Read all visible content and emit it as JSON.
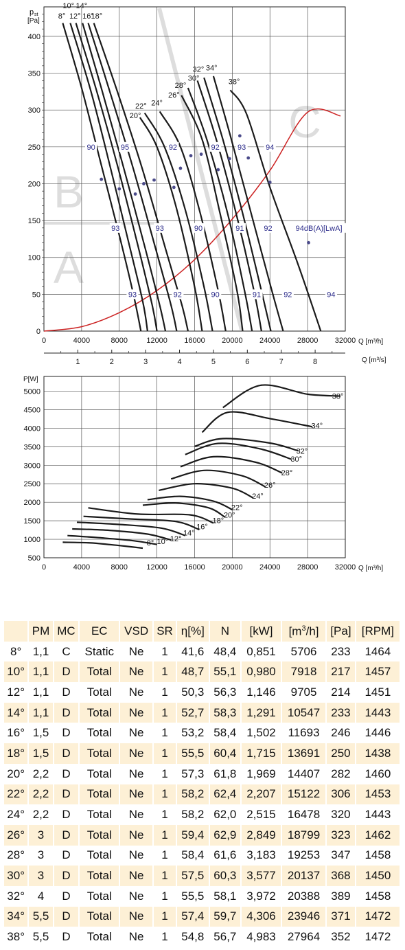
{
  "chart_data": [
    {
      "type": "line",
      "xlabel": "Q [m³/h]",
      "ylabel_top": "p",
      "ylabel_sub": "st",
      "ylabel_unit": "[Pa]",
      "xlim": [
        0,
        32000
      ],
      "ylim": [
        0,
        440
      ],
      "xticks": [
        "0",
        "4000",
        "8000",
        "12000",
        "16000",
        "20000",
        "24000",
        "28000",
        "32000"
      ],
      "xticks_values": [
        0,
        4000,
        8000,
        12000,
        16000,
        20000,
        24000,
        28000,
        32000
      ],
      "yticks": [
        "0",
        "50",
        "100",
        "150",
        "200",
        "250",
        "300",
        "350",
        "400"
      ],
      "yticks_values": [
        0,
        50,
        100,
        150,
        200,
        250,
        300,
        350,
        400
      ],
      "secondary_axis": {
        "label": "Q [m³/s]",
        "ticks": [
          "1",
          "2",
          "3",
          "4",
          "5",
          "6",
          "7",
          "8"
        ],
        "values": [
          1,
          2,
          3,
          4,
          5,
          6,
          7,
          8
        ],
        "m3h_per_unit": 3600
      },
      "zone_letters": [
        "A",
        "B",
        "C"
      ],
      "system_curve": {
        "color": "#cc2222",
        "x": [
          0,
          4000,
          8000,
          12000,
          16000,
          20000,
          24000,
          28000,
          31500
        ],
        "y": [
          0,
          6,
          25,
          55,
          97,
          152,
          218,
          297,
          292
        ]
      },
      "series": [
        {
          "name": "8°",
          "label_at": [
            1900,
            424
          ],
          "x": [
            2000,
            4000,
            6000,
            8000,
            9500,
            10300
          ],
          "y": [
            418,
            330,
            230,
            130,
            50,
            0
          ]
        },
        {
          "name": "10°",
          "label_at": [
            2600,
            438
          ],
          "x": [
            2800,
            5000,
            7000,
            9000,
            10500,
            11000
          ],
          "y": [
            418,
            325,
            225,
            120,
            40,
            0
          ]
        },
        {
          "name": "12°",
          "label_at": [
            3300,
            424
          ],
          "x": [
            3400,
            5500,
            7800,
            10000,
            11500,
            12000
          ],
          "y": [
            418,
            330,
            225,
            115,
            35,
            0
          ]
        },
        {
          "name": "14°",
          "label_at": [
            4000,
            438
          ],
          "x": [
            4100,
            6200,
            8500,
            10800,
            12300,
            12900
          ],
          "y": [
            418,
            325,
            220,
            110,
            35,
            0
          ]
        },
        {
          "name": "16°",
          "label_at": [
            4700,
            424
          ],
          "x": [
            4700,
            7000,
            9500,
            11900,
            13500,
            14100
          ],
          "y": [
            418,
            325,
            220,
            110,
            35,
            0
          ]
        },
        {
          "name": "18°",
          "label_at": [
            5600,
            424
          ],
          "x": [
            5300,
            7800,
            10500,
            13000,
            14700,
            15300
          ],
          "y": [
            418,
            325,
            218,
            108,
            33,
            0
          ]
        },
        {
          "name": "20°",
          "label_at": [
            9700,
            289
          ],
          "x": [
            10200,
            12000,
            14000,
            16000,
            16800
          ],
          "y": [
            290,
            250,
            170,
            60,
            0
          ]
        },
        {
          "name": "22°",
          "label_at": [
            10300,
            302
          ],
          "x": [
            10700,
            12800,
            15000,
            17000,
            17900
          ],
          "y": [
            296,
            250,
            165,
            60,
            0
          ]
        },
        {
          "name": "24°",
          "label_at": [
            12000,
            306
          ],
          "x": [
            12300,
            14500,
            16600,
            18500,
            19300
          ],
          "y": [
            298,
            250,
            160,
            55,
            0
          ]
        },
        {
          "name": "26°",
          "label_at": [
            13800,
            317
          ],
          "x": [
            14600,
            16800,
            18700,
            20500,
            21100
          ],
          "y": [
            320,
            260,
            160,
            55,
            0
          ]
        },
        {
          "name": "28°",
          "label_at": [
            14500,
            330
          ],
          "x": [
            15300,
            17300,
            19500,
            21300,
            22100
          ],
          "y": [
            330,
            260,
            160,
            55,
            0
          ]
        },
        {
          "name": "30°",
          "label_at": [
            15900,
            340
          ],
          "x": [
            16300,
            18300,
            20500,
            22300,
            23100
          ],
          "y": [
            340,
            260,
            155,
            55,
            0
          ]
        },
        {
          "name": "32°",
          "label_at": [
            16400,
            352
          ],
          "x": [
            17000,
            19000,
            21000,
            23000,
            24100
          ],
          "y": [
            344,
            260,
            165,
            60,
            0
          ]
        },
        {
          "name": "34°",
          "label_at": [
            17800,
            354
          ],
          "x": [
            18000,
            19800,
            22000,
            24200,
            25400
          ],
          "y": [
            346,
            265,
            160,
            55,
            0
          ]
        },
        {
          "name": "38°",
          "label_at": [
            20200,
            335
          ],
          "x": [
            19800,
            21500,
            24000,
            27000,
            29400
          ],
          "y": [
            327,
            295,
            195,
            90,
            0
          ]
        }
      ],
      "noise_labels": [
        {
          "text": "90",
          "at": [
            5000,
            250
          ]
        },
        {
          "text": "95",
          "at": [
            8600,
            250
          ]
        },
        {
          "text": "92",
          "at": [
            13700,
            250
          ]
        },
        {
          "text": "92",
          "at": [
            18200,
            250
          ]
        },
        {
          "text": "93",
          "at": [
            21000,
            250
          ]
        },
        {
          "text": "94",
          "at": [
            24000,
            250
          ]
        },
        {
          "text": "93",
          "at": [
            7600,
            140
          ]
        },
        {
          "text": "93",
          "at": [
            12300,
            140
          ]
        },
        {
          "text": "90",
          "at": [
            16400,
            140
          ]
        },
        {
          "text": "91",
          "at": [
            20800,
            140
          ]
        },
        {
          "text": "92",
          "at": [
            23800,
            140
          ]
        },
        {
          "text": "94dB(A)[LwA]",
          "at": [
            29200,
            140
          ]
        },
        {
          "text": "93",
          "at": [
            9400,
            50
          ]
        },
        {
          "text": "92",
          "at": [
            14200,
            50
          ]
        },
        {
          "text": "90",
          "at": [
            18200,
            50
          ]
        },
        {
          "text": "91",
          "at": [
            22600,
            50
          ]
        },
        {
          "text": "92",
          "at": [
            25900,
            50
          ]
        },
        {
          "text": "94",
          "at": [
            30500,
            50
          ]
        }
      ],
      "marker_points": [
        [
          6100,
          206
        ],
        [
          8000,
          193
        ],
        [
          9700,
          186
        ],
        [
          10600,
          200
        ],
        [
          11700,
          205
        ],
        [
          13800,
          195
        ],
        [
          14500,
          221
        ],
        [
          15600,
          238
        ],
        [
          16700,
          240
        ],
        [
          18500,
          219
        ],
        [
          19700,
          234
        ],
        [
          20800,
          265
        ],
        [
          21700,
          235
        ],
        [
          24000,
          202
        ],
        [
          28100,
          120
        ]
      ]
    },
    {
      "type": "line",
      "xlabel": "Q [m³/h]",
      "ylabel": "P[W]",
      "xlim": [
        0,
        32000
      ],
      "ylim": [
        500,
        5400
      ],
      "xticks": [
        "0",
        "4000",
        "8000",
        "12000",
        "16000",
        "20000",
        "24000",
        "28000",
        "32000"
      ],
      "xticks_values": [
        0,
        4000,
        8000,
        12000,
        16000,
        20000,
        24000,
        28000,
        32000
      ],
      "yticks": [
        "500",
        "1000",
        "1500",
        "2000",
        "2500",
        "3000",
        "3500",
        "4000",
        "4500",
        "5000"
      ],
      "yticks_values": [
        500,
        1000,
        1500,
        2000,
        2500,
        3000,
        3500,
        4000,
        4500,
        5000
      ],
      "series": [
        {
          "name": "8°",
          "label_at": [
            11300,
            830
          ],
          "x": [
            2000,
            5000,
            8000,
            10500
          ],
          "y": [
            920,
            900,
            830,
            760
          ]
        },
        {
          "name": "10°",
          "label_at": [
            12600,
            870
          ],
          "x": [
            2500,
            6000,
            9500,
            12000
          ],
          "y": [
            1100,
            1040,
            960,
            860
          ]
        },
        {
          "name": "12°",
          "label_at": [
            14000,
            950
          ],
          "x": [
            3000,
            7000,
            11000,
            13500
          ],
          "y": [
            1280,
            1240,
            1140,
            980
          ]
        },
        {
          "name": "14°",
          "label_at": [
            15400,
            1100
          ],
          "x": [
            3500,
            8000,
            12500,
            15000
          ],
          "y": [
            1460,
            1400,
            1300,
            1100
          ]
        },
        {
          "name": "16°",
          "label_at": [
            16800,
            1270
          ],
          "x": [
            4200,
            9000,
            14000,
            16500
          ],
          "y": [
            1620,
            1550,
            1480,
            1260
          ]
        },
        {
          "name": "18°",
          "label_at": [
            18500,
            1440
          ],
          "x": [
            4700,
            10000,
            15500,
            18000
          ],
          "y": [
            1850,
            1680,
            1660,
            1440
          ]
        },
        {
          "name": "20°",
          "label_at": [
            19700,
            1590
          ],
          "x": [
            10500,
            14000,
            17500,
            19200
          ],
          "y": [
            1920,
            1980,
            1850,
            1600
          ]
        },
        {
          "name": "22°",
          "label_at": [
            20500,
            1790
          ],
          "x": [
            11000,
            14500,
            18000,
            20000
          ],
          "y": [
            2070,
            2160,
            2030,
            1800
          ]
        },
        {
          "name": "24°",
          "label_at": [
            22700,
            2100
          ],
          "x": [
            12200,
            16000,
            20000,
            22200
          ],
          "y": [
            2320,
            2500,
            2380,
            2120
          ]
        },
        {
          "name": "26°",
          "label_at": [
            24000,
            2390
          ],
          "x": [
            13500,
            17000,
            21000,
            23500
          ],
          "y": [
            2630,
            2860,
            2720,
            2420
          ]
        },
        {
          "name": "28°",
          "label_at": [
            25800,
            2730
          ],
          "x": [
            14500,
            18000,
            22500,
            25300
          ],
          "y": [
            2960,
            3230,
            3080,
            2790
          ]
        },
        {
          "name": "30°",
          "label_at": [
            26800,
            3100
          ],
          "x": [
            15000,
            18500,
            23000,
            26300
          ],
          "y": [
            3290,
            3590,
            3440,
            3160
          ]
        },
        {
          "name": "32°",
          "label_at": [
            27400,
            3310
          ],
          "x": [
            16000,
            19000,
            24000,
            27000
          ],
          "y": [
            3510,
            3720,
            3600,
            3390
          ]
        },
        {
          "name": "34°",
          "label_at": [
            29000,
            4000
          ],
          "x": [
            16800,
            19500,
            24000,
            28500
          ],
          "y": [
            3890,
            4430,
            4260,
            4040
          ]
        },
        {
          "name": "38°",
          "label_at": [
            31200,
            4800
          ],
          "x": [
            19000,
            23000,
            28000,
            31500
          ],
          "y": [
            4560,
            5160,
            4920,
            4870
          ]
        }
      ]
    }
  ],
  "table": {
    "headers": [
      "",
      "PM",
      "MC",
      "EC",
      "VSD",
      "SR",
      "η[%]",
      "N",
      "[kW]",
      "[m3/h]",
      "[Pa]",
      "[RPM]"
    ],
    "header_m3h_base": "[m",
    "header_m3h_sup": "3",
    "header_m3h_tail": "/h]",
    "rows": [
      [
        "8°",
        "1,1",
        "C",
        "Static",
        "Ne",
        "1",
        "41,6",
        "48,4",
        "0,851",
        "5706",
        "233",
        "1464"
      ],
      [
        "10°",
        "1,1",
        "D",
        "Total",
        "Ne",
        "1",
        "48,7",
        "55,1",
        "0,980",
        "7918",
        "217",
        "1457"
      ],
      [
        "12°",
        "1,1",
        "D",
        "Total",
        "Ne",
        "1",
        "50,3",
        "56,3",
        "1,146",
        "9705",
        "214",
        "1451"
      ],
      [
        "14°",
        "1,1",
        "D",
        "Total",
        "Ne",
        "1",
        "52,7",
        "58,3",
        "1,291",
        "10547",
        "233",
        "1443"
      ],
      [
        "16°",
        "1,5",
        "D",
        "Total",
        "Ne",
        "1",
        "53,2",
        "58,4",
        "1,502",
        "11693",
        "246",
        "1446"
      ],
      [
        "18°",
        "1,5",
        "D",
        "Total",
        "Ne",
        "1",
        "55,5",
        "60,4",
        "1,715",
        "13691",
        "250",
        "1438"
      ],
      [
        "20°",
        "2,2",
        "D",
        "Total",
        "Ne",
        "1",
        "57,3",
        "61,8",
        "1,969",
        "14407",
        "282",
        "1460"
      ],
      [
        "22°",
        "2,2",
        "D",
        "Total",
        "Ne",
        "1",
        "58,2",
        "62,4",
        "2,207",
        "15122",
        "306",
        "1453"
      ],
      [
        "24°",
        "2,2",
        "D",
        "Total",
        "Ne",
        "1",
        "58,2",
        "62,0",
        "2,515",
        "16478",
        "320",
        "1443"
      ],
      [
        "26°",
        "3",
        "D",
        "Total",
        "Ne",
        "1",
        "59,4",
        "62,9",
        "2,849",
        "18799",
        "323",
        "1462"
      ],
      [
        "28°",
        "3",
        "D",
        "Total",
        "Ne",
        "1",
        "58,4",
        "61,6",
        "3,183",
        "19253",
        "347",
        "1458"
      ],
      [
        "30°",
        "3",
        "D",
        "Total",
        "Ne",
        "1",
        "57,5",
        "60,3",
        "3,577",
        "20137",
        "368",
        "1450"
      ],
      [
        "32°",
        "4",
        "D",
        "Total",
        "Ne",
        "1",
        "55,5",
        "58,1",
        "3,972",
        "20388",
        "389",
        "1458"
      ],
      [
        "34°",
        "5,5",
        "D",
        "Total",
        "Ne",
        "1",
        "57,4",
        "59,7",
        "4,306",
        "23946",
        "371",
        "1472"
      ],
      [
        "38°",
        "5,5",
        "D",
        "Total",
        "Ne",
        "1",
        "54,8",
        "56,7",
        "4,983",
        "27964",
        "352",
        "1472"
      ]
    ]
  },
  "colors": {
    "grid": "#555555",
    "curve": "#1a1a1a",
    "system_curve": "#cc2222",
    "noise_label": "#2b2b8a",
    "row_highlight": "#fdf0d6",
    "watermark": "#dddddd"
  }
}
